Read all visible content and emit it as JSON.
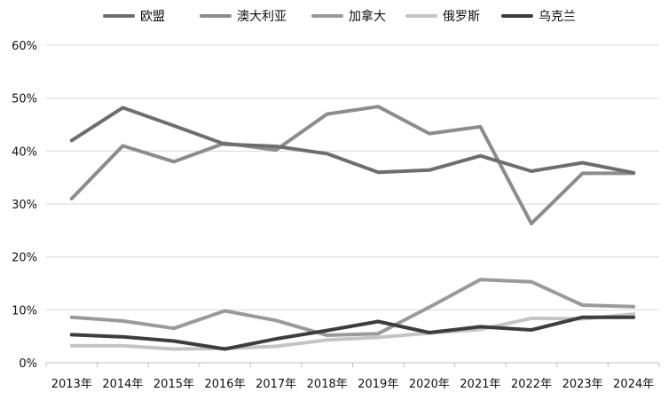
{
  "chart_data": {
    "type": "line",
    "title": "",
    "xlabel": "",
    "ylabel": "",
    "x": [
      "2013年",
      "2014年",
      "2015年",
      "2016年",
      "2017年",
      "2018年",
      "2019年",
      "2020年",
      "2021年",
      "2022年",
      "2023年",
      "2024年"
    ],
    "y_ticks": [
      "0%",
      "10%",
      "20%",
      "30%",
      "40%",
      "50%",
      "60%"
    ],
    "ylim": [
      0,
      60
    ],
    "grid": true,
    "legend_position": "top",
    "series": [
      {
        "name": "欧盟",
        "color": "#6e6e6e",
        "values": [
          42,
          48.2,
          44.8,
          41.3,
          40.9,
          39.5,
          36,
          36.4,
          39.1,
          36.2,
          37.8,
          35.9
        ]
      },
      {
        "name": "澳大利亚",
        "color": "#8c8c8c",
        "values": [
          31,
          41,
          38,
          41.5,
          40.2,
          47,
          48.4,
          43.3,
          44.6,
          26.3,
          35.8,
          35.8
        ]
      },
      {
        "name": "加拿大",
        "color": "#9a9a9a",
        "values": [
          8.6,
          7.9,
          6.5,
          9.8,
          8,
          5.2,
          5.5,
          10.5,
          15.7,
          15.3,
          10.9,
          10.6
        ]
      },
      {
        "name": "俄罗斯",
        "color": "#c4c4c4",
        "values": [
          3.2,
          3.2,
          2.6,
          2.7,
          3.1,
          4.3,
          4.8,
          5.6,
          6.3,
          8.4,
          8.3,
          9.2
        ]
      },
      {
        "name": "乌克兰",
        "color": "#3d3d3d",
        "values": [
          5.3,
          4.9,
          4.1,
          2.6,
          4.5,
          6.1,
          7.8,
          5.7,
          6.8,
          6.2,
          8.6,
          8.6
        ]
      }
    ]
  }
}
